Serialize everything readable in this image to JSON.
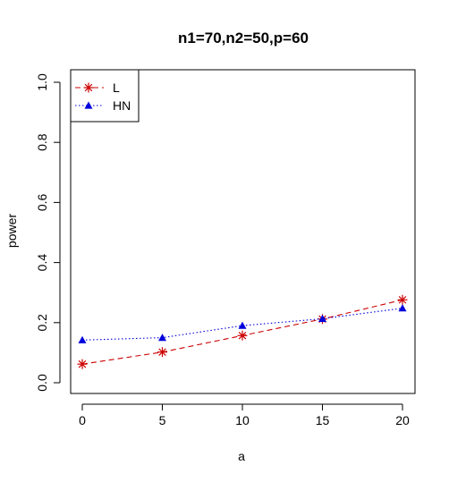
{
  "chart_data": {
    "type": "line",
    "title": "n1=70,n2=50,p=60",
    "xlabel": "a",
    "ylabel": "power",
    "x": [
      0,
      5,
      10,
      15,
      20
    ],
    "xticks": [
      "0",
      "5",
      "10",
      "15",
      "20"
    ],
    "yticks": [
      "0.0",
      "0.2",
      "0.4",
      "0.6",
      "0.8",
      "1.0"
    ],
    "xlim": [
      0,
      20
    ],
    "ylim": [
      0,
      1
    ],
    "grid": false,
    "legend_position": "top-left",
    "series": [
      {
        "name": "L",
        "values": [
          0.062,
          0.102,
          0.157,
          0.212,
          0.276
        ],
        "color": "#cc0000",
        "marker": "asterisk",
        "line": "dashed"
      },
      {
        "name": "HN",
        "values": [
          0.142,
          0.15,
          0.19,
          0.213,
          0.248
        ],
        "color": "#0000dd",
        "marker": "triangle",
        "line": "dotted"
      }
    ]
  }
}
